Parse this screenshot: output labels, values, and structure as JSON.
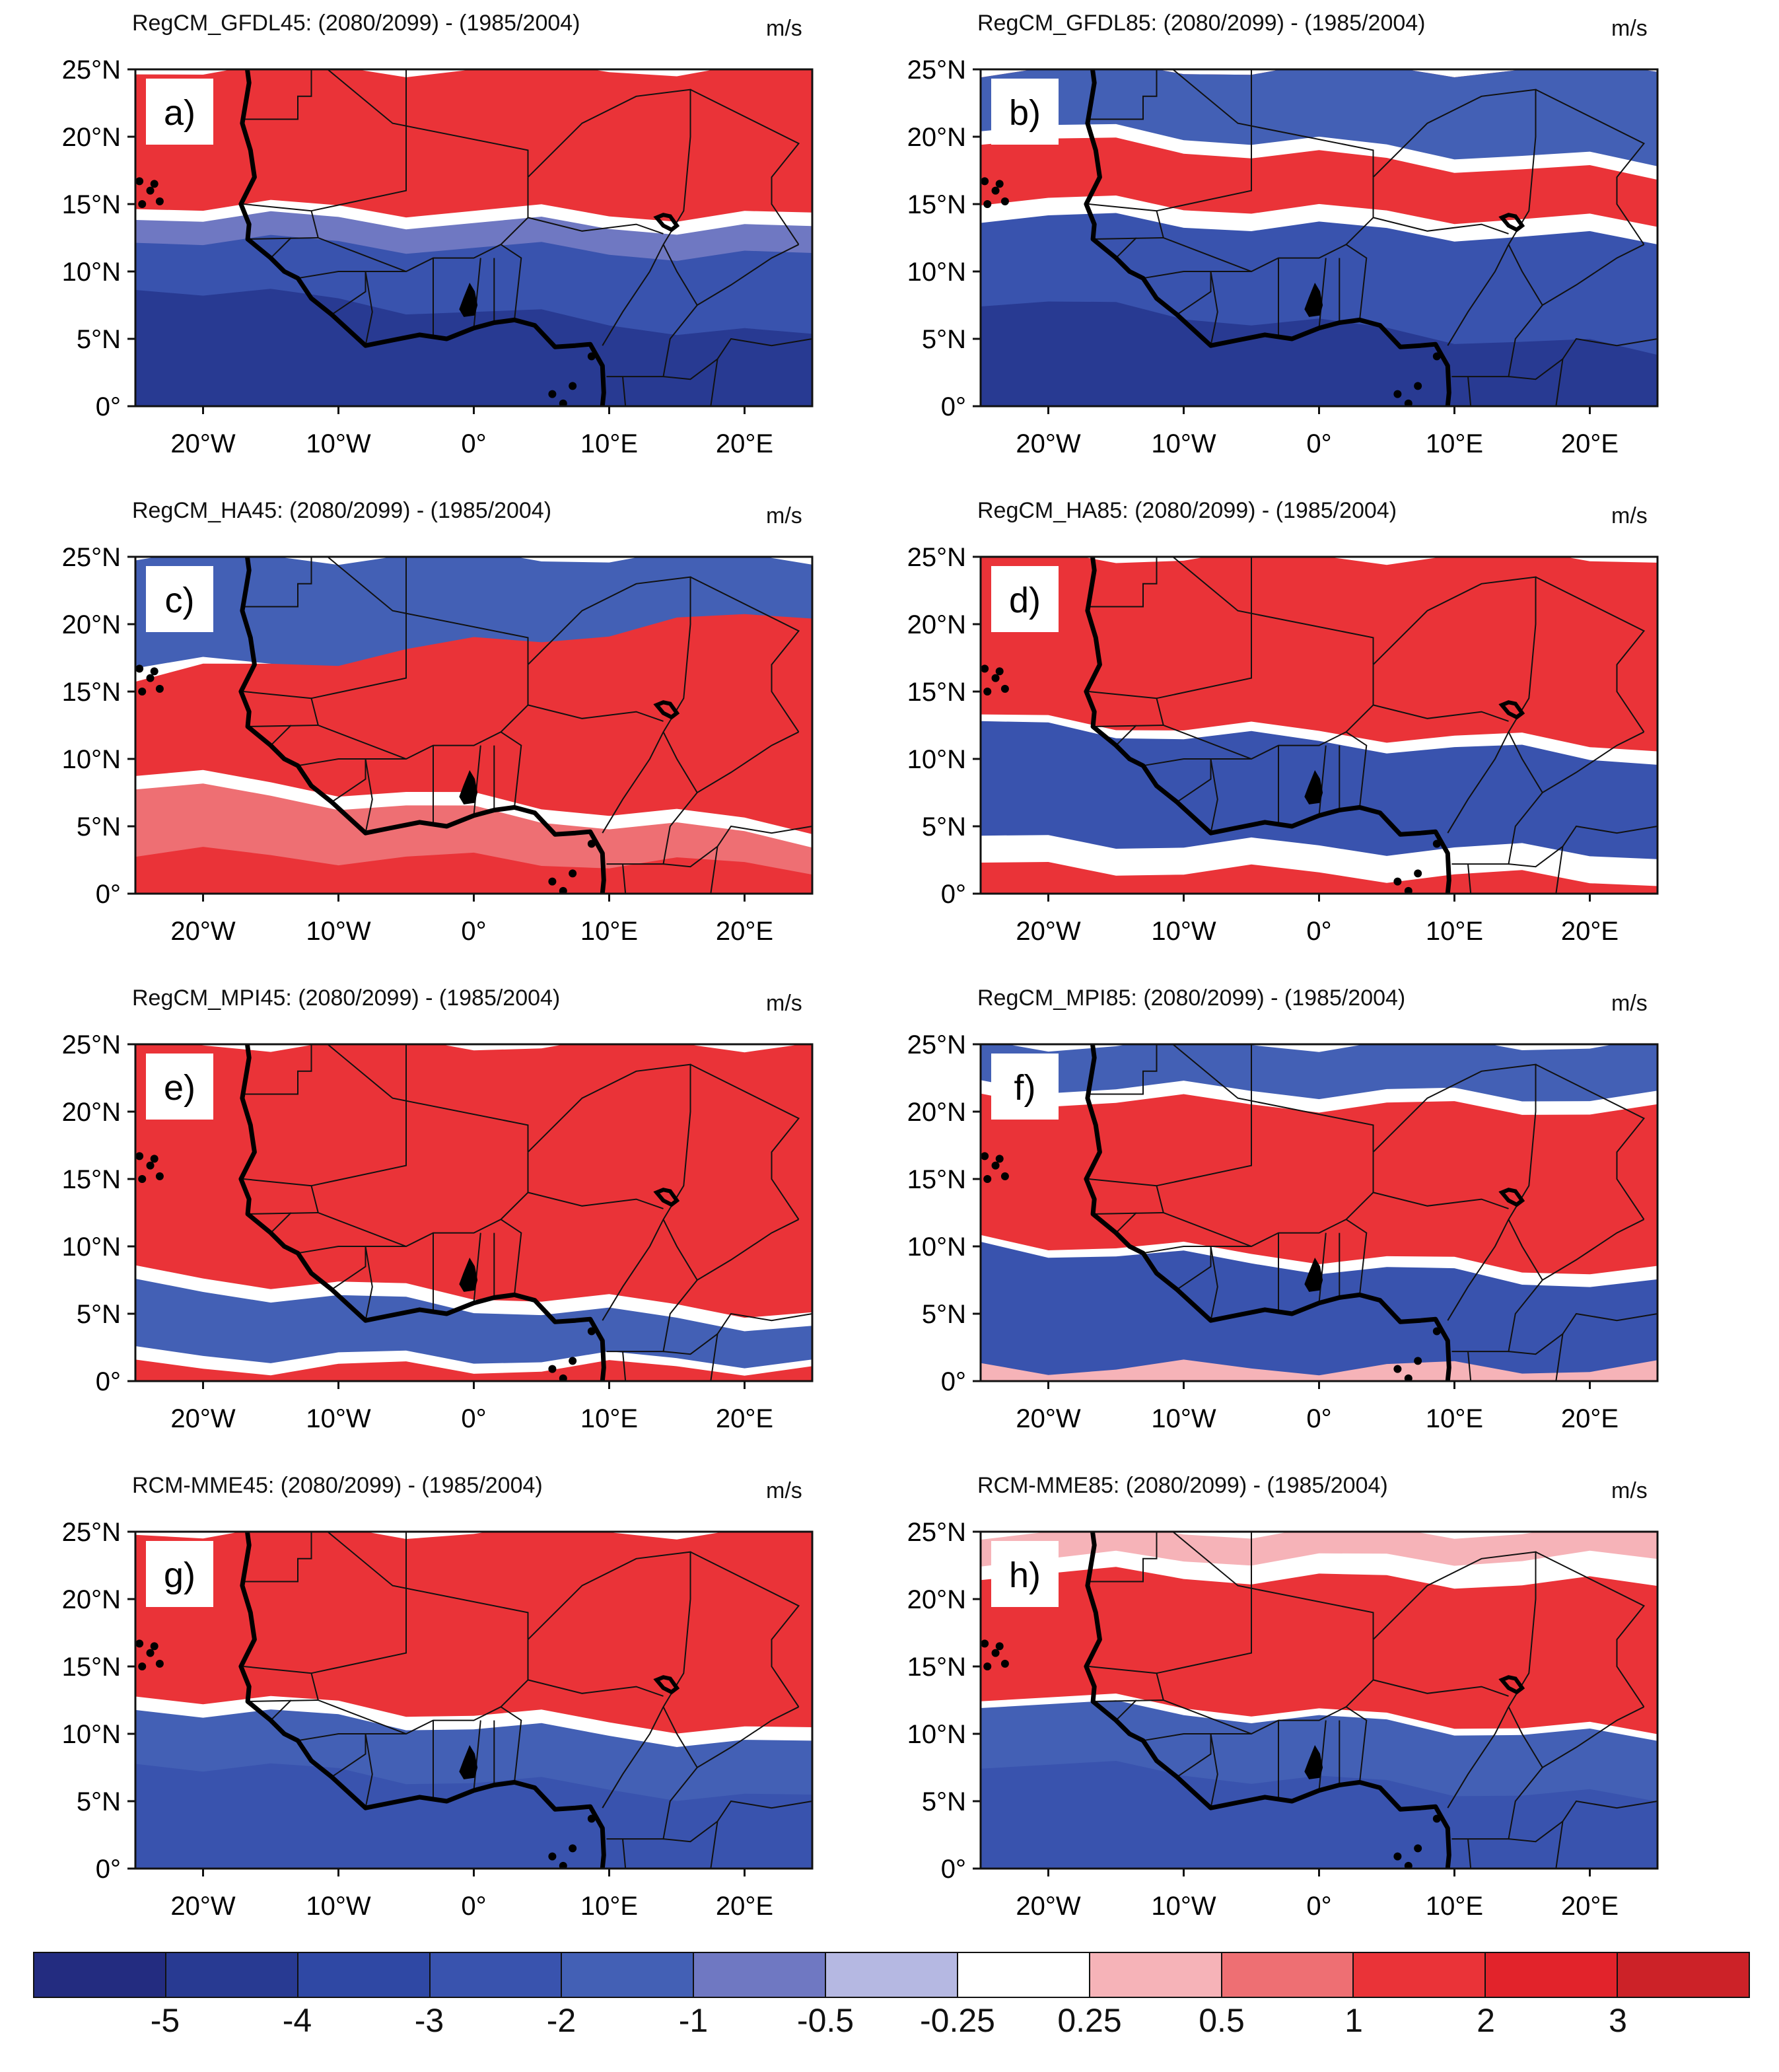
{
  "figure": {
    "colorbar": {
      "colors": [
        "#232c80",
        "#283a92",
        "#2f48a4",
        "#3953ae",
        "#4360b5",
        "#6f78c2",
        "#b5b8e2",
        "#ffffff",
        "#f6b3b8",
        "#ee6f73",
        "#ea3338",
        "#e2232b",
        "#cc2228"
      ],
      "labels": [
        "-5",
        "-4",
        "-3",
        "-2",
        "-1",
        "-0.5",
        "-0.25",
        "0.25",
        "0.5",
        "1",
        "2",
        "3"
      ]
    },
    "x_ticks": [
      "20°W",
      "10°W",
      "0°",
      "10°E",
      "20°E"
    ],
    "y_ticks": [
      "25°N",
      "20°N",
      "15°N",
      "10°N",
      "5°N",
      "0°"
    ],
    "panels": [
      {
        "id": "a",
        "label": "a)",
        "title": "RegCM_GFDL45: (2080/2099) - (1985/2004)",
        "unit": "m/s"
      },
      {
        "id": "b",
        "label": "b)",
        "title": "RegCM_GFDL85: (2080/2099) - (1985/2004)",
        "unit": "m/s"
      },
      {
        "id": "c",
        "label": "c)",
        "title": "RegCM_HA45: (2080/2099) - (1985/2004)",
        "unit": "m/s"
      },
      {
        "id": "d",
        "label": "d)",
        "title": "RegCM_HA85: (2080/2099) - (1985/2004)",
        "unit": "m/s"
      },
      {
        "id": "e",
        "label": "e)",
        "title": "RegCM_MPI45: (2080/2099) - (1985/2004)",
        "unit": "m/s"
      },
      {
        "id": "f",
        "label": "f)",
        "title": "RegCM_MPI85: (2080/2099) - (1985/2004)",
        "unit": "m/s"
      },
      {
        "id": "g",
        "label": "g)",
        "title": "RCM-MME45: (2080/2099) - (1985/2004)",
        "unit": "m/s"
      },
      {
        "id": "h",
        "label": "h)",
        "title": "RCM-MME85: (2080/2099) - (1985/2004)",
        "unit": "m/s"
      }
    ]
  }
}
